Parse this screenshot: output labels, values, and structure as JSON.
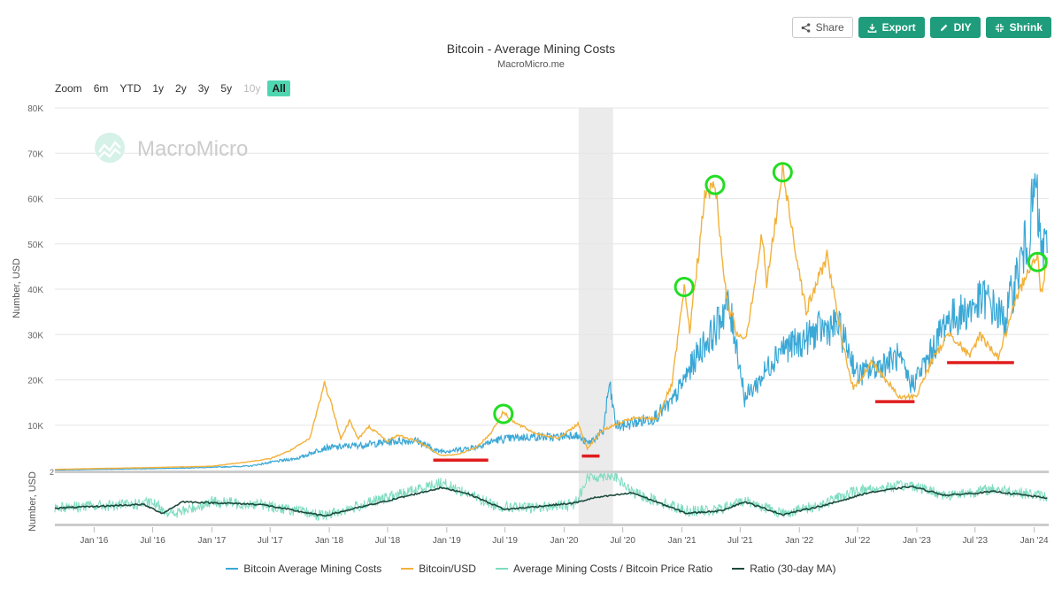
{
  "toolbar": {
    "share_label": "Share",
    "export_label": "Export",
    "diy_label": "DIY",
    "shrink_label": "Shrink"
  },
  "header": {
    "title": "Bitcoin - Average Mining Costs",
    "subtitle": "MacroMicro.me"
  },
  "zoom": {
    "label": "Zoom",
    "buttons": [
      {
        "label": "6m",
        "state": "normal"
      },
      {
        "label": "YTD",
        "state": "normal"
      },
      {
        "label": "1y",
        "state": "normal"
      },
      {
        "label": "2y",
        "state": "normal"
      },
      {
        "label": "3y",
        "state": "normal"
      },
      {
        "label": "5y",
        "state": "normal"
      },
      {
        "label": "10y",
        "state": "disabled"
      },
      {
        "label": "All",
        "state": "active"
      }
    ]
  },
  "watermark": "MacroMicro",
  "colors": {
    "mining_cost": "#3aa8d6",
    "btc_usd": "#f2b13a",
    "ratio": "#7fdcc0",
    "ratio_ma": "#1d4a3c",
    "peak_marker": "#22dd22",
    "trough_marker": "#e01d1d",
    "accent": "#1e9c7b"
  },
  "chart_data": [
    {
      "type": "line",
      "title": "Bitcoin - Average Mining Costs",
      "ylabel": "Number, USD",
      "ylim": [
        0,
        80000
      ],
      "yticks": [
        "10K",
        "20K",
        "30K",
        "40K",
        "50K",
        "60K",
        "70K",
        "80K"
      ],
      "xlim": [
        "2015-09-01",
        "2024-02-15"
      ],
      "x_tick_labels": [
        "Jan '16",
        "Jul '16",
        "Jan '17",
        "Jul '17",
        "Jan '18",
        "Jul '18",
        "Jan '19",
        "Jul '19",
        "Jan '20",
        "Jul '20",
        "Jan '21",
        "Jul '21",
        "Jan '22",
        "Jul '22",
        "Jan '23",
        "Jul '23",
        "Jan '24"
      ],
      "shaded_period": [
        "2020-02-15",
        "2020-06-01"
      ],
      "series": [
        {
          "name": "Bitcoin Average Mining Costs",
          "points": [
            [
              "2015-09-01",
              100
            ],
            [
              "2016-01-01",
              250
            ],
            [
              "2016-07-01",
              400
            ],
            [
              "2017-01-01",
              700
            ],
            [
              "2017-05-01",
              1000
            ],
            [
              "2017-07-01",
              1800
            ],
            [
              "2017-10-01",
              2800
            ],
            [
              "2017-12-15",
              5000
            ],
            [
              "2018-02-01",
              5200
            ],
            [
              "2018-04-01",
              5600
            ],
            [
              "2018-06-01",
              6000
            ],
            [
              "2018-08-01",
              6500
            ],
            [
              "2018-10-01",
              6600
            ],
            [
              "2018-12-01",
              4300
            ],
            [
              "2019-02-01",
              4500
            ],
            [
              "2019-04-01",
              5200
            ],
            [
              "2019-06-01",
              6700
            ],
            [
              "2019-08-01",
              7200
            ],
            [
              "2019-10-01",
              7500
            ],
            [
              "2019-12-01",
              7300
            ],
            [
              "2020-02-01",
              8000
            ],
            [
              "2020-03-15",
              6000
            ],
            [
              "2020-05-01",
              8500
            ],
            [
              "2020-05-20",
              19000
            ],
            [
              "2020-06-10",
              10000
            ],
            [
              "2020-07-01",
              9800
            ],
            [
              "2020-08-01",
              10500
            ],
            [
              "2020-10-01",
              11500
            ],
            [
              "2020-12-01",
              15000
            ],
            [
              "2021-01-15",
              21000
            ],
            [
              "2021-03-01",
              27000
            ],
            [
              "2021-04-15",
              31000
            ],
            [
              "2021-05-20",
              37000
            ],
            [
              "2021-06-15",
              30000
            ],
            [
              "2021-07-15",
              16000
            ],
            [
              "2021-09-01",
              20000
            ],
            [
              "2021-11-01",
              27000
            ],
            [
              "2022-01-01",
              28000
            ],
            [
              "2022-03-01",
              31000
            ],
            [
              "2022-05-01",
              32000
            ],
            [
              "2022-06-01",
              27000
            ],
            [
              "2022-07-01",
              21000
            ],
            [
              "2022-09-01",
              23000
            ],
            [
              "2022-11-01",
              25000
            ],
            [
              "2022-12-15",
              19000
            ],
            [
              "2023-02-01",
              24000
            ],
            [
              "2023-04-01",
              33000
            ],
            [
              "2023-06-01",
              35000
            ],
            [
              "2023-08-01",
              38000
            ],
            [
              "2023-10-01",
              33000
            ],
            [
              "2023-11-15",
              45000
            ],
            [
              "2023-12-15",
              52000
            ],
            [
              "2024-01-05",
              63000
            ],
            [
              "2024-01-20",
              50000
            ],
            [
              "2024-02-10",
              48000
            ]
          ]
        },
        {
          "name": "Bitcoin/USD",
          "points": [
            [
              "2015-09-01",
              240
            ],
            [
              "2016-01-01",
              430
            ],
            [
              "2016-07-01",
              650
            ],
            [
              "2017-01-01",
              950
            ],
            [
              "2017-05-01",
              2000
            ],
            [
              "2017-07-01",
              2600
            ],
            [
              "2017-09-01",
              4400
            ],
            [
              "2017-11-01",
              7000
            ],
            [
              "2017-12-17",
              19300
            ],
            [
              "2018-01-15",
              13000
            ],
            [
              "2018-02-06",
              7000
            ],
            [
              "2018-03-05",
              11000
            ],
            [
              "2018-04-01",
              7000
            ],
            [
              "2018-05-05",
              9700
            ],
            [
              "2018-07-01",
              6400
            ],
            [
              "2018-08-01",
              7800
            ],
            [
              "2018-10-01",
              6500
            ],
            [
              "2018-12-15",
              3300
            ],
            [
              "2019-02-01",
              3500
            ],
            [
              "2019-04-01",
              5000
            ],
            [
              "2019-05-15",
              8000
            ],
            [
              "2019-06-26",
              12900
            ],
            [
              "2019-08-01",
              10500
            ],
            [
              "2019-10-01",
              8300
            ],
            [
              "2019-12-15",
              7100
            ],
            [
              "2020-02-13",
              10300
            ],
            [
              "2020-03-13",
              4900
            ],
            [
              "2020-05-01",
              9000
            ],
            [
              "2020-08-01",
              11500
            ],
            [
              "2020-10-15",
              11500
            ],
            [
              "2020-12-01",
              19000
            ],
            [
              "2021-01-08",
              40000
            ],
            [
              "2021-01-25",
              31000
            ],
            [
              "2021-03-13",
              60000
            ],
            [
              "2021-04-14",
              63500
            ],
            [
              "2021-05-19",
              38000
            ],
            [
              "2021-06-22",
              30000
            ],
            [
              "2021-07-20",
              29700
            ],
            [
              "2021-09-07",
              52000
            ],
            [
              "2021-09-21",
              41000
            ],
            [
              "2021-11-10",
              66000
            ],
            [
              "2022-01-22",
              35000
            ],
            [
              "2022-03-28",
              47500
            ],
            [
              "2022-05-12",
              29000
            ],
            [
              "2022-06-18",
              18000
            ],
            [
              "2022-08-15",
              24000
            ],
            [
              "2022-11-09",
              16000
            ],
            [
              "2022-12-31",
              16500
            ],
            [
              "2023-02-15",
              24000
            ],
            [
              "2023-04-14",
              30500
            ],
            [
              "2023-06-15",
              25000
            ],
            [
              "2023-07-15",
              30000
            ],
            [
              "2023-09-11",
              25000
            ],
            [
              "2023-10-24",
              34500
            ],
            [
              "2023-12-08",
              44000
            ],
            [
              "2024-01-11",
              47000
            ],
            [
              "2024-01-23",
              39000
            ],
            [
              "2024-02-10",
              47000
            ]
          ]
        }
      ],
      "annotations": {
        "peaks": [
          [
            "2019-06-26",
            12500
          ],
          [
            "2021-01-08",
            40500
          ],
          [
            "2021-04-14",
            63000
          ],
          [
            "2021-11-10",
            65800
          ],
          [
            "2024-01-11",
            46000
          ]
        ],
        "troughs": [
          [
            "2018-11-20",
            "2019-05-10",
            2300
          ],
          [
            "2020-02-25",
            "2020-04-20",
            3200
          ],
          [
            "2022-08-25",
            "2022-12-25",
            15200
          ],
          [
            "2023-04-05",
            "2023-10-30",
            23800
          ]
        ]
      }
    },
    {
      "type": "line",
      "ylabel": "Number, USD",
      "ylim": [
        0,
        2
      ],
      "yticks": [
        "2"
      ],
      "series": [
        {
          "name": "Average Mining Costs / Bitcoin Price Ratio",
          "points": [
            [
              "2015-09-01",
              0.65
            ],
            [
              "2016-03-01",
              0.7
            ],
            [
              "2016-07-01",
              0.8
            ],
            [
              "2016-09-01",
              0.35
            ],
            [
              "2017-01-01",
              0.85
            ],
            [
              "2017-06-01",
              0.75
            ],
            [
              "2017-12-15",
              0.3
            ],
            [
              "2018-06-01",
              0.9
            ],
            [
              "2018-12-15",
              1.6
            ],
            [
              "2019-06-01",
              0.7
            ],
            [
              "2019-09-01",
              0.6
            ],
            [
              "2020-02-01",
              0.75
            ],
            [
              "2020-03-15",
              1.8
            ],
            [
              "2020-06-01",
              1.9
            ],
            [
              "2020-08-01",
              1.2
            ],
            [
              "2021-01-15",
              0.5
            ],
            [
              "2021-04-15",
              0.5
            ],
            [
              "2021-07-15",
              0.9
            ],
            [
              "2021-11-10",
              0.4
            ],
            [
              "2022-03-01",
              0.7
            ],
            [
              "2022-07-01",
              1.3
            ],
            [
              "2022-12-15",
              1.5
            ],
            [
              "2023-04-01",
              1.1
            ],
            [
              "2023-09-01",
              1.35
            ],
            [
              "2024-02-10",
              1.05
            ]
          ]
        },
        {
          "name": "Ratio (30-day MA)",
          "points": [
            [
              "2015-09-01",
              0.6
            ],
            [
              "2016-06-01",
              0.75
            ],
            [
              "2016-08-01",
              0.4
            ],
            [
              "2016-10-01",
              0.85
            ],
            [
              "2017-06-01",
              0.75
            ],
            [
              "2017-12-15",
              0.3
            ],
            [
              "2018-06-01",
              0.8
            ],
            [
              "2018-12-15",
              1.4
            ],
            [
              "2019-03-01",
              1.2
            ],
            [
              "2019-07-01",
              0.55
            ],
            [
              "2020-02-01",
              0.8
            ],
            [
              "2020-04-01",
              1.0
            ],
            [
              "2020-08-01",
              1.2
            ],
            [
              "2021-01-15",
              0.4
            ],
            [
              "2021-05-01",
              0.5
            ],
            [
              "2021-07-15",
              0.85
            ],
            [
              "2021-11-10",
              0.35
            ],
            [
              "2022-04-01",
              0.75
            ],
            [
              "2022-08-01",
              1.2
            ],
            [
              "2022-12-15",
              1.45
            ],
            [
              "2023-04-01",
              1.1
            ],
            [
              "2023-09-01",
              1.25
            ],
            [
              "2024-02-10",
              1.0
            ]
          ]
        }
      ]
    }
  ],
  "legend": {
    "items": [
      {
        "label": "Bitcoin Average Mining Costs",
        "color": "#3aa8d6"
      },
      {
        "label": "Bitcoin/USD",
        "color": "#f2b13a"
      },
      {
        "label": "Average Mining Costs / Bitcoin Price Ratio",
        "color": "#7fdcc0"
      },
      {
        "label": "Ratio (30-day MA)",
        "color": "#1d4a3c"
      }
    ]
  }
}
